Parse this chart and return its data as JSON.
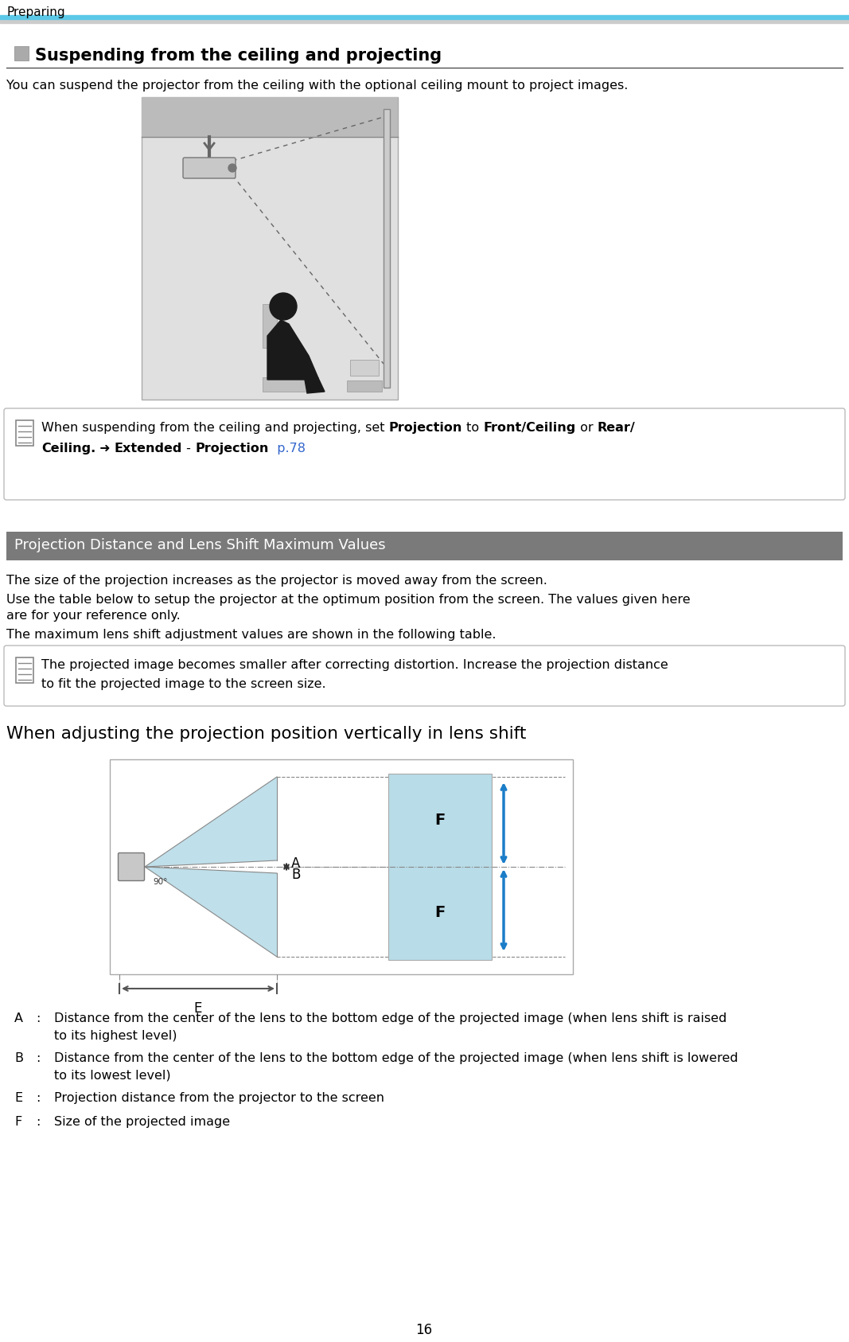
{
  "page_number": "16",
  "header_text": "Preparing",
  "header_cyan_color": "#5BC8E8",
  "header_gray_color": "#CCCCCC",
  "section1_title": "Suspending from the ceiling and projecting",
  "intro_text": "You can suspend the projector from the ceiling with the optional ceiling mount to project images.",
  "note1_line1": "When suspending from the ceiling and projecting, set ",
  "note1_bold1": "Projection",
  "note1_mid1": " to ",
  "note1_bold2": "Front/Ceiling",
  "note1_mid2": " or ",
  "note1_bold3": "Rear/",
  "note1_line2_bold1": "Ceiling.",
  "note1_line2_mid1": " ➜ ",
  "note1_line2_bold2": "Extended",
  "note1_line2_mid2": " - ",
  "note1_line2_bold3": "Projection",
  "note1_line2_blue": "  p.78",
  "section2_title": "Projection Distance and Lens Shift Maximum Values",
  "section2_bg": "#7A7A7A",
  "section2_text_color": "#FFFFFF",
  "body_text1": "The size of the projection increases as the projector is moved away from the screen.",
  "body_text2a": "Use the table below to setup the projector at the optimum position from the screen. The values given here",
  "body_text2b": "are for your reference only.",
  "body_text3": "The maximum lens shift adjustment values are shown in the following table.",
  "note2_text1": "The projected image becomes smaller after correcting distortion. Increase the projection distance",
  "note2_text2": "to fit the projected image to the screen size.",
  "subsection_title": "When adjusting the projection position vertically in lens shift",
  "legend_A_label": "A",
  "legend_A_text1": "Distance from the center of the lens to the bottom edge of the projected image (when lens shift is raised",
  "legend_A_text2": "to its highest level)",
  "legend_B_label": "B",
  "legend_B_text1": "Distance from the center of the lens to the bottom edge of the projected image (when lens shift is lowered",
  "legend_B_text2": "to its lowest level)",
  "legend_E_label": "E",
  "legend_E_text": "Projection distance from the projector to the screen",
  "legend_F_label": "F",
  "legend_F_text": "Size of the projected image",
  "bg_color": "#FFFFFF",
  "text_color": "#000000",
  "diagram1_bg": "#E0E0E0",
  "diagram1_ceil_bg": "#BBBBBB",
  "light_blue": "#B8DCE8",
  "blue_arrow": "#1B7DC8",
  "note_border": "#BBBBBB",
  "line_color": "#999999",
  "dark_silhouette": "#1A1A1A",
  "proj_body_color": "#C8C8C8",
  "proj_dark": "#888888"
}
